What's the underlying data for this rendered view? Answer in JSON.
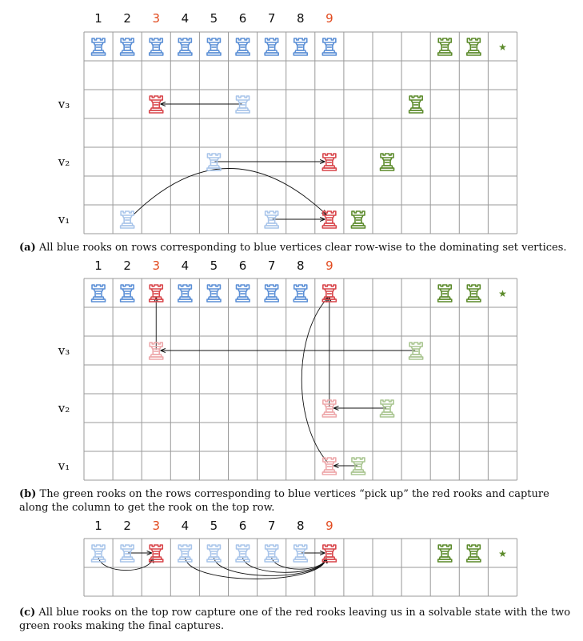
{
  "colors": {
    "blue": "#5b8fd6",
    "blue_light": "#a9c5ea",
    "red": "#d8454a",
    "red_light": "#eda7aa",
    "green": "#5b8a2a",
    "green_light": "#a9c590",
    "highlight_label": "#e24a1e",
    "star": "#5b8a2a",
    "grid": "#9a9a9a",
    "arrow": "#111111"
  },
  "icons": {
    "piece": "rook-icon",
    "star": "star-icon"
  },
  "star_glyph": "★",
  "column_labels": [
    "1",
    "2",
    "3",
    "4",
    "5",
    "6",
    "7",
    "8",
    "9"
  ],
  "highlighted_columns": [
    "3",
    "9"
  ],
  "row_labels": {
    "v3": "v₃",
    "v2": "v₂",
    "v1": "v₁"
  },
  "panels": [
    {
      "id": "a",
      "caption_tag": "(a)",
      "caption_text": "All blue rooks on rows corresponding to blue vertices clear row-wise to the dominating set vertices.",
      "rows": [
        null,
        null,
        "v3",
        null,
        "v2",
        null,
        "v1"
      ],
      "pieces": [
        {
          "row": 0,
          "col": 0,
          "color": "blue"
        },
        {
          "row": 0,
          "col": 1,
          "color": "blue"
        },
        {
          "row": 0,
          "col": 2,
          "color": "blue"
        },
        {
          "row": 0,
          "col": 3,
          "color": "blue"
        },
        {
          "row": 0,
          "col": 4,
          "color": "blue"
        },
        {
          "row": 0,
          "col": 5,
          "color": "blue"
        },
        {
          "row": 0,
          "col": 6,
          "color": "blue"
        },
        {
          "row": 0,
          "col": 7,
          "color": "blue"
        },
        {
          "row": 0,
          "col": 8,
          "color": "blue"
        },
        {
          "row": 0,
          "col": 12,
          "color": "green"
        },
        {
          "row": 0,
          "col": 13,
          "color": "green"
        },
        {
          "row": 2,
          "col": 2,
          "color": "red"
        },
        {
          "row": 2,
          "col": 5,
          "color": "blue_light"
        },
        {
          "row": 2,
          "col": 11,
          "color": "green"
        },
        {
          "row": 4,
          "col": 4,
          "color": "blue_light"
        },
        {
          "row": 4,
          "col": 8,
          "color": "red"
        },
        {
          "row": 4,
          "col": 10,
          "color": "green"
        },
        {
          "row": 6,
          "col": 1,
          "color": "blue_light"
        },
        {
          "row": 6,
          "col": 6,
          "color": "blue_light"
        },
        {
          "row": 6,
          "col": 8,
          "color": "red"
        },
        {
          "row": 6,
          "col": 9,
          "color": "green"
        }
      ],
      "stars": [
        {
          "row": 0,
          "col": 14
        }
      ],
      "arrows": [
        {
          "type": "line",
          "from": [
            2,
            5
          ],
          "to": [
            2,
            2
          ]
        },
        {
          "type": "line",
          "from": [
            4,
            4
          ],
          "to": [
            4,
            8
          ]
        },
        {
          "type": "line",
          "from": [
            6,
            6
          ],
          "to": [
            6,
            8
          ]
        },
        {
          "type": "arc",
          "from": [
            6,
            1
          ],
          "to": [
            6,
            8
          ],
          "lift": 2.1
        }
      ]
    },
    {
      "id": "b",
      "caption_tag": "(b)",
      "caption_text": "The green rooks on the rows corresponding to blue vertices “pick up” the red rooks and capture along the column to get the rook on the top row.",
      "rows": [
        null,
        null,
        "v3",
        null,
        "v2",
        null,
        "v1"
      ],
      "pieces": [
        {
          "row": 0,
          "col": 0,
          "color": "blue"
        },
        {
          "row": 0,
          "col": 1,
          "color": "blue"
        },
        {
          "row": 0,
          "col": 2,
          "color": "red"
        },
        {
          "row": 0,
          "col": 3,
          "color": "blue"
        },
        {
          "row": 0,
          "col": 4,
          "color": "blue"
        },
        {
          "row": 0,
          "col": 5,
          "color": "blue"
        },
        {
          "row": 0,
          "col": 6,
          "color": "blue"
        },
        {
          "row": 0,
          "col": 7,
          "color": "blue"
        },
        {
          "row": 0,
          "col": 8,
          "color": "red"
        },
        {
          "row": 0,
          "col": 12,
          "color": "green"
        },
        {
          "row": 0,
          "col": 13,
          "color": "green"
        },
        {
          "row": 2,
          "col": 2,
          "color": "red_light"
        },
        {
          "row": 2,
          "col": 11,
          "color": "green_light"
        },
        {
          "row": 4,
          "col": 8,
          "color": "red_light"
        },
        {
          "row": 4,
          "col": 10,
          "color": "green_light"
        },
        {
          "row": 6,
          "col": 8,
          "color": "red_light"
        },
        {
          "row": 6,
          "col": 9,
          "color": "green_light"
        }
      ],
      "stars": [
        {
          "row": 0,
          "col": 14
        }
      ],
      "arrows": [
        {
          "type": "line",
          "from": [
            2,
            11
          ],
          "to": [
            2,
            2
          ]
        },
        {
          "type": "line",
          "from": [
            2,
            2
          ],
          "to": [
            0,
            2
          ]
        },
        {
          "type": "line",
          "from": [
            4,
            10
          ],
          "to": [
            4,
            8
          ]
        },
        {
          "type": "line",
          "from": [
            4,
            8
          ],
          "to": [
            0,
            8
          ]
        },
        {
          "type": "line",
          "from": [
            6,
            9
          ],
          "to": [
            6,
            8
          ]
        },
        {
          "type": "varc",
          "from": [
            6,
            8
          ],
          "to": [
            0,
            8
          ],
          "bulge": -0.9
        }
      ]
    },
    {
      "id": "c",
      "caption_tag": "(c)",
      "caption_text": "All blue rooks on the top row capture one of the red rooks leaving us in a solvable state with the two green rooks making the final captures.",
      "rows": [
        null,
        null
      ],
      "pieces": [
        {
          "row": 0,
          "col": 0,
          "color": "blue_light"
        },
        {
          "row": 0,
          "col": 1,
          "color": "blue_light"
        },
        {
          "row": 0,
          "col": 2,
          "color": "red"
        },
        {
          "row": 0,
          "col": 3,
          "color": "blue_light"
        },
        {
          "row": 0,
          "col": 4,
          "color": "blue_light"
        },
        {
          "row": 0,
          "col": 5,
          "color": "blue_light"
        },
        {
          "row": 0,
          "col": 6,
          "color": "blue_light"
        },
        {
          "row": 0,
          "col": 7,
          "color": "blue_light"
        },
        {
          "row": 0,
          "col": 8,
          "color": "red"
        },
        {
          "row": 0,
          "col": 12,
          "color": "green"
        },
        {
          "row": 0,
          "col": 13,
          "color": "green"
        }
      ],
      "stars": [
        {
          "row": 0,
          "col": 14
        }
      ],
      "arrows": [
        {
          "type": "line",
          "from": [
            0,
            1
          ],
          "to": [
            0,
            2
          ]
        },
        {
          "type": "line",
          "from": [
            0,
            7
          ],
          "to": [
            0,
            8
          ]
        },
        {
          "type": "drop",
          "from": [
            0,
            0
          ],
          "to": [
            0,
            2
          ],
          "depth": 0.35
        },
        {
          "type": "drop",
          "from": [
            0,
            3
          ],
          "to": [
            0,
            8
          ],
          "depth": 0.75
        },
        {
          "type": "drop",
          "from": [
            0,
            4
          ],
          "to": [
            0,
            8
          ],
          "depth": 0.6
        },
        {
          "type": "drop",
          "from": [
            0,
            5
          ],
          "to": [
            0,
            8
          ],
          "depth": 0.45
        },
        {
          "type": "drop",
          "from": [
            0,
            6
          ],
          "to": [
            0,
            8
          ],
          "depth": 0.3
        }
      ]
    }
  ]
}
